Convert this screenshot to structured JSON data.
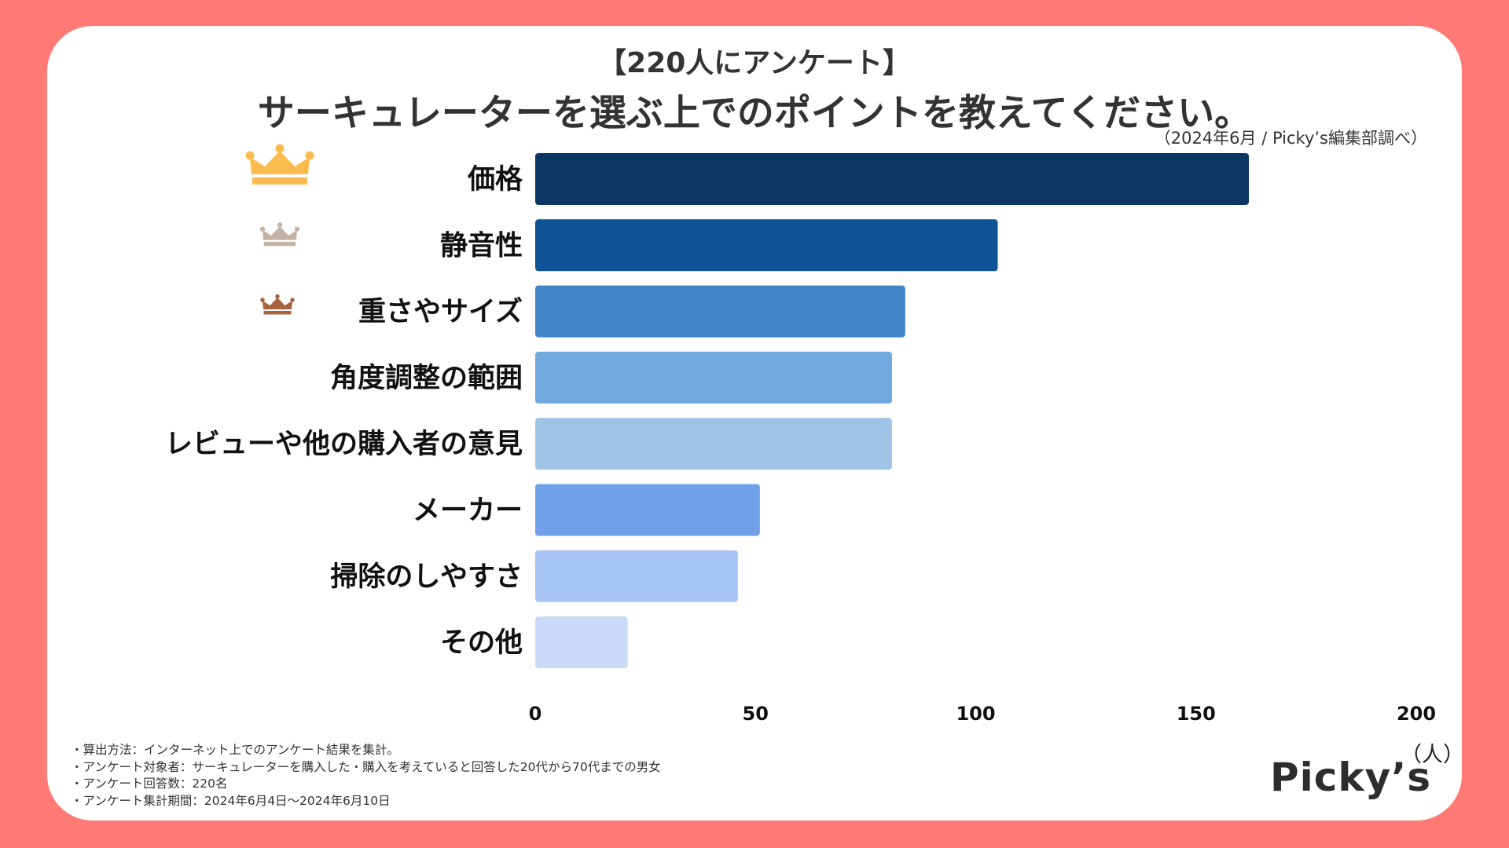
{
  "header": {
    "survey_tag": "【220人にアンケート】",
    "source": "（2024年6月 / Picky’s編集部調べ）"
  },
  "chart_data": {
    "type": "bar",
    "orientation": "horizontal",
    "title": "サーキュレーターを選ぶ上でのポイントを教えてください。",
    "categories": [
      "価格",
      "静音性",
      "重さやサイズ",
      "角度調整の範囲",
      "レビューや他の購入者の意見",
      "メーカー",
      "掃除のしやすさ",
      "その他"
    ],
    "values": [
      162,
      105,
      84,
      81,
      81,
      51,
      46,
      21
    ],
    "bar_colors": [
      "#0a3764",
      "#0e5496",
      "#4185c8",
      "#70a9de",
      "#a0c4e8",
      "#6fa0e8",
      "#a6c4f4",
      "#cad9f8"
    ],
    "ranks": [
      {
        "name": "gold-crown-icon",
        "color": "#fbbb4e"
      },
      {
        "name": "silver-crown-icon",
        "color": "#c4b2a4"
      },
      {
        "name": "bronze-crown-icon",
        "color": "#a8623c"
      }
    ],
    "xlim": [
      0,
      200
    ],
    "xticks": [
      0,
      50,
      100,
      150,
      200
    ],
    "xlabel": "（人）",
    "legend": "none",
    "grid": false
  },
  "footnotes": [
    "・算出方法：インターネット上でのアンケート結果を集計。",
    "・アンケート対象者：サーキュレーターを購入した・購入を考えていると回答した20代から70代までの男女",
    "・アンケート回答数：220名",
    "・アンケート集計期間：2024年6月4日〜2024年6月10日"
  ],
  "logo": {
    "text": "Picky’s"
  }
}
